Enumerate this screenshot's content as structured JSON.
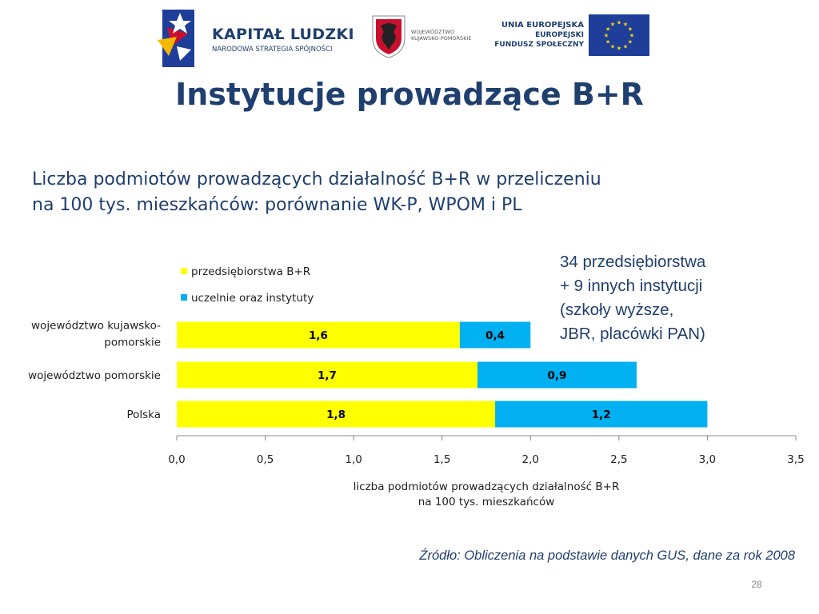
{
  "logos": {
    "kapital_title": "KAPITAŁ LUDZKI",
    "kapital_sub": "NARODOWA STRATEGIA SPÓJNOŚCI",
    "wkp_line1": "WOJEWÓDZTWO",
    "wkp_line2": "KUJAWSKO-POMORSKIE",
    "ue_line1": "UNIA EUROPEJSKA",
    "ue_line2": "EUROPEJSKI",
    "ue_line3": "FUNDUSZ SPOŁECZNY",
    "colors": {
      "navy": "#1f3f6e",
      "eu_blue": "#1f3e9a",
      "eu_gold": "#ffdd00",
      "crimson": "#c8102e"
    }
  },
  "page": {
    "title": "Instytucje prowadzące B+R",
    "subtitle_line1": "Liczba podmiotów prowadzących działalność B+R w przeliczeniu",
    "subtitle_line2": "na 100 tys. mieszkańców: porównanie WK-P, WPOM i PL",
    "note_lines": [
      "34 przedsiębiorstwa",
      "+ 9 innych instytucji",
      "(szkoły wyższe,",
      "JBR, placówki PAN)"
    ],
    "source": "Źródło: Obliczenia na podstawie danych GUS, dane za rok 2008",
    "page_number": "28"
  },
  "chart_data": {
    "type": "bar",
    "orientation": "horizontal",
    "stacked": true,
    "categories": [
      [
        "województwo kujawsko-",
        "pomorskie"
      ],
      [
        "województwo pomorskie"
      ],
      [
        "Polska"
      ]
    ],
    "series": [
      {
        "name": "przedsiębiorstwa B+R",
        "values": [
          1.6,
          1.7,
          1.8
        ],
        "labels": [
          "1,6",
          "1,7",
          "1,8"
        ],
        "color": "#ffff00"
      },
      {
        "name": "uczelnie oraz instytuty",
        "values": [
          0.4,
          0.9,
          1.2
        ],
        "labels": [
          "0,4",
          "0,9",
          "1,2"
        ],
        "color": "#00b0f0"
      }
    ],
    "xlim": [
      0,
      3.5
    ],
    "xticks": [
      0,
      0.5,
      1.0,
      1.5,
      2.0,
      2.5,
      3.0,
      3.5
    ],
    "xtick_labels": [
      "0,0",
      "0,5",
      "1,0",
      "1,5",
      "2,0",
      "2,5",
      "3,0",
      "3,5"
    ],
    "xlabel_lines": [
      "liczba podmiotów prowadzących działalność B+R",
      "na 100 tys. mieszkańców"
    ],
    "legend_position": "top",
    "grid": false
  }
}
